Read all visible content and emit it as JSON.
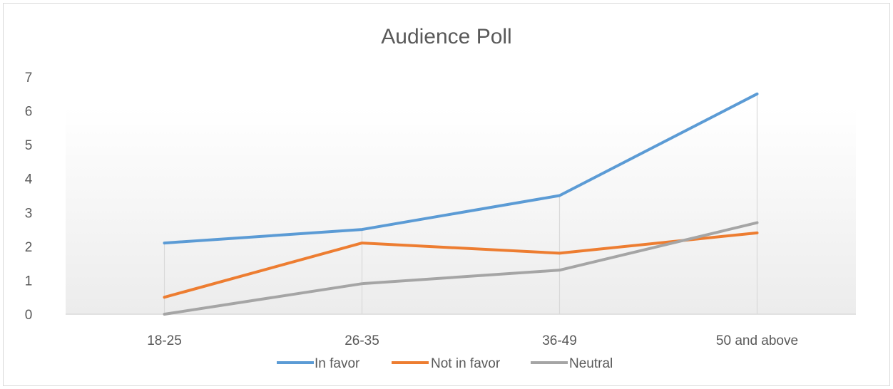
{
  "chart_data": {
    "type": "line",
    "title": "Audience Poll",
    "categories": [
      "18-25",
      "26-35",
      "36-49",
      "50 and above"
    ],
    "ylim": [
      0,
      7
    ],
    "yticks": [
      0,
      1,
      2,
      3,
      4,
      5,
      6,
      7
    ],
    "grid": "vertical drop lines at categories",
    "legend_position": "bottom",
    "series": [
      {
        "name": "In favor",
        "values": [
          2.1,
          2.5,
          3.5,
          6.5
        ],
        "color": "#5b9bd5"
      },
      {
        "name": "Not in favor",
        "values": [
          0.5,
          2.1,
          1.8,
          2.4
        ],
        "color": "#ed7d31"
      },
      {
        "name": "Neutral",
        "values": [
          0.0,
          0.9,
          1.3,
          2.7
        ],
        "color": "#a5a5a5"
      }
    ]
  }
}
